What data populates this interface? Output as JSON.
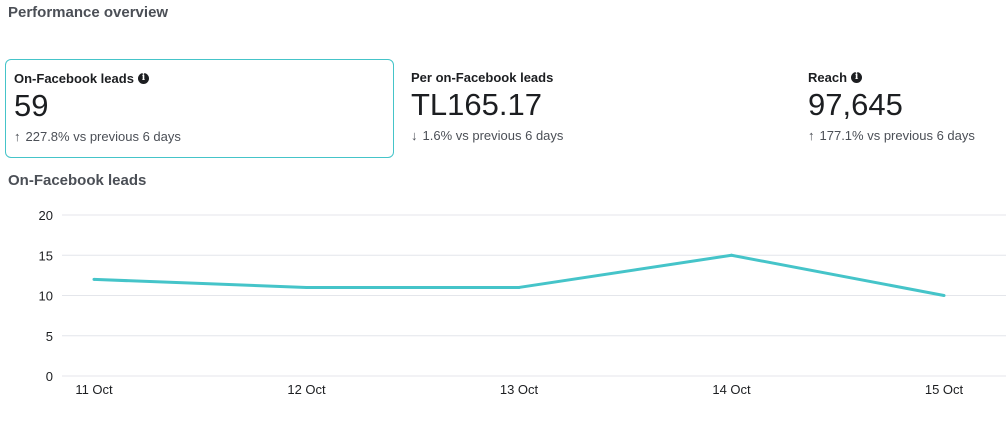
{
  "header": {
    "title": "Performance overview"
  },
  "cards": [
    {
      "label": "On-Facebook leads",
      "has_info": true,
      "value": "59",
      "direction": "up",
      "delta": "227.8% vs previous 6 days",
      "selected": true
    },
    {
      "label": "Per on-Facebook leads",
      "has_info": false,
      "value": "TL165.17",
      "direction": "down",
      "delta": "1.6% vs previous 6 days",
      "selected": false
    },
    {
      "label": "Reach",
      "has_info": true,
      "value": "97,645",
      "direction": "up",
      "delta": "177.1% vs previous 6 days",
      "selected": false
    }
  ],
  "colors": {
    "accent": "#45c4c9",
    "grid": "#e4e6eb"
  },
  "chart_data": {
    "type": "line",
    "title": "On-Facebook leads",
    "categories": [
      "11 Oct",
      "12 Oct",
      "13 Oct",
      "14 Oct",
      "15 Oct"
    ],
    "series": [
      {
        "values": [
          12,
          11,
          11,
          15,
          10
        ]
      }
    ],
    "ylim": [
      0,
      20
    ],
    "yticks": [
      0,
      5,
      10,
      15,
      20
    ],
    "grid": true,
    "legend": "none"
  }
}
